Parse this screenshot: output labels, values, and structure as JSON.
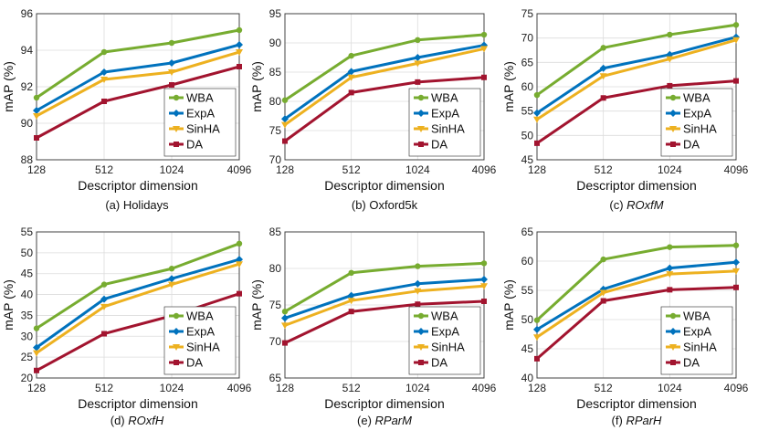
{
  "figure": {
    "title": ""
  },
  "chart_data": [
    {
      "type": "line",
      "id": "a",
      "caption_prefix": "(a) ",
      "caption_name": "Holidays",
      "caption_italic": false,
      "categories": [
        "128",
        "512",
        "1024",
        "4096"
      ],
      "xlabel": "Descriptor dimension",
      "ylabel": "mAP (%)",
      "ylim": [
        88,
        96
      ],
      "yticks": [
        88,
        90,
        92,
        94,
        96
      ],
      "series": [
        {
          "name": "WBA",
          "values": [
            91.4,
            93.9,
            94.4,
            95.1
          ]
        },
        {
          "name": "ExpA",
          "values": [
            90.7,
            92.8,
            93.3,
            94.3
          ]
        },
        {
          "name": "SinHA",
          "values": [
            90.4,
            92.4,
            92.8,
            93.9
          ]
        },
        {
          "name": "DA",
          "values": [
            89.2,
            91.2,
            92.1,
            93.1
          ]
        }
      ]
    },
    {
      "type": "line",
      "id": "b",
      "caption_prefix": "(b) ",
      "caption_name": "Oxford5k",
      "caption_italic": false,
      "categories": [
        "128",
        "512",
        "1024",
        "4096"
      ],
      "xlabel": "Descriptor dimension",
      "ylabel": "mAP (%)",
      "ylim": [
        70,
        95
      ],
      "yticks": [
        70,
        75,
        80,
        85,
        90,
        95
      ],
      "series": [
        {
          "name": "WBA",
          "values": [
            80.2,
            87.8,
            90.5,
            91.4
          ]
        },
        {
          "name": "ExpA",
          "values": [
            77.0,
            85.1,
            87.5,
            89.6
          ]
        },
        {
          "name": "SinHA",
          "values": [
            76.0,
            84.1,
            86.5,
            89.0
          ]
        },
        {
          "name": "DA",
          "values": [
            73.2,
            81.5,
            83.3,
            84.1
          ]
        }
      ]
    },
    {
      "type": "line",
      "id": "c",
      "caption_prefix": "(c) ",
      "caption_name": "ROxfM",
      "caption_italic": true,
      "categories": [
        "128",
        "512",
        "1024",
        "4096"
      ],
      "xlabel": "Descriptor dimension",
      "ylabel": "mAP (%)",
      "ylim": [
        45,
        75
      ],
      "yticks": [
        45,
        50,
        55,
        60,
        65,
        70,
        75
      ],
      "series": [
        {
          "name": "WBA",
          "values": [
            58.3,
            68.0,
            70.7,
            72.7
          ]
        },
        {
          "name": "ExpA",
          "values": [
            54.6,
            63.8,
            66.6,
            70.2
          ]
        },
        {
          "name": "SinHA",
          "values": [
            53.3,
            62.2,
            65.7,
            69.6
          ]
        },
        {
          "name": "DA",
          "values": [
            48.4,
            57.7,
            60.2,
            61.2
          ]
        }
      ]
    },
    {
      "type": "line",
      "id": "d",
      "caption_prefix": "(d) ",
      "caption_name": "ROxfH",
      "caption_italic": true,
      "categories": [
        "128",
        "512",
        "1024",
        "4096"
      ],
      "xlabel": "Descriptor dimension",
      "ylabel": "mAP (%)",
      "ylim": [
        20,
        55
      ],
      "yticks": [
        20,
        25,
        30,
        35,
        40,
        45,
        50,
        55
      ],
      "series": [
        {
          "name": "WBA",
          "values": [
            31.9,
            42.4,
            46.2,
            52.2
          ]
        },
        {
          "name": "ExpA",
          "values": [
            27.3,
            38.9,
            43.8,
            48.4
          ]
        },
        {
          "name": "SinHA",
          "values": [
            26.0,
            37.1,
            42.4,
            47.3
          ]
        },
        {
          "name": "DA",
          "values": [
            21.8,
            30.6,
            34.9,
            40.2
          ]
        }
      ]
    },
    {
      "type": "line",
      "id": "e",
      "caption_prefix": "(e) ",
      "caption_name": "RParM",
      "caption_italic": true,
      "categories": [
        "128",
        "512",
        "1024",
        "4096"
      ],
      "xlabel": "Descriptor dimension",
      "ylabel": "mAP (%)",
      "ylim": [
        65,
        85
      ],
      "yticks": [
        65,
        70,
        75,
        80,
        85
      ],
      "series": [
        {
          "name": "WBA",
          "values": [
            74.1,
            79.4,
            80.3,
            80.7
          ]
        },
        {
          "name": "ExpA",
          "values": [
            73.2,
            76.3,
            77.9,
            78.5
          ]
        },
        {
          "name": "SinHA",
          "values": [
            72.2,
            75.6,
            76.9,
            77.6
          ]
        },
        {
          "name": "DA",
          "values": [
            69.8,
            74.1,
            75.1,
            75.5
          ]
        }
      ]
    },
    {
      "type": "line",
      "id": "f",
      "caption_prefix": "(f) ",
      "caption_name": "RParH",
      "caption_italic": true,
      "categories": [
        "128",
        "512",
        "1024",
        "4096"
      ],
      "xlabel": "Descriptor dimension",
      "ylabel": "mAP (%)",
      "ylim": [
        40,
        65
      ],
      "yticks": [
        40,
        45,
        50,
        55,
        60,
        65
      ],
      "series": [
        {
          "name": "WBA",
          "values": [
            49.9,
            60.3,
            62.4,
            62.7
          ]
        },
        {
          "name": "ExpA",
          "values": [
            48.3,
            55.2,
            58.8,
            59.8
          ]
        },
        {
          "name": "SinHA",
          "values": [
            47.0,
            54.6,
            57.8,
            58.3
          ]
        },
        {
          "name": "DA",
          "values": [
            43.3,
            53.2,
            55.1,
            55.5
          ]
        }
      ]
    }
  ],
  "colors": {
    "WBA": "#77ac30",
    "ExpA": "#0072bd",
    "SinHA": "#edb120",
    "DA": "#a2142f"
  },
  "markers": {
    "WBA": "circle",
    "ExpA": "diamond",
    "SinHA": "triangle",
    "DA": "square"
  }
}
